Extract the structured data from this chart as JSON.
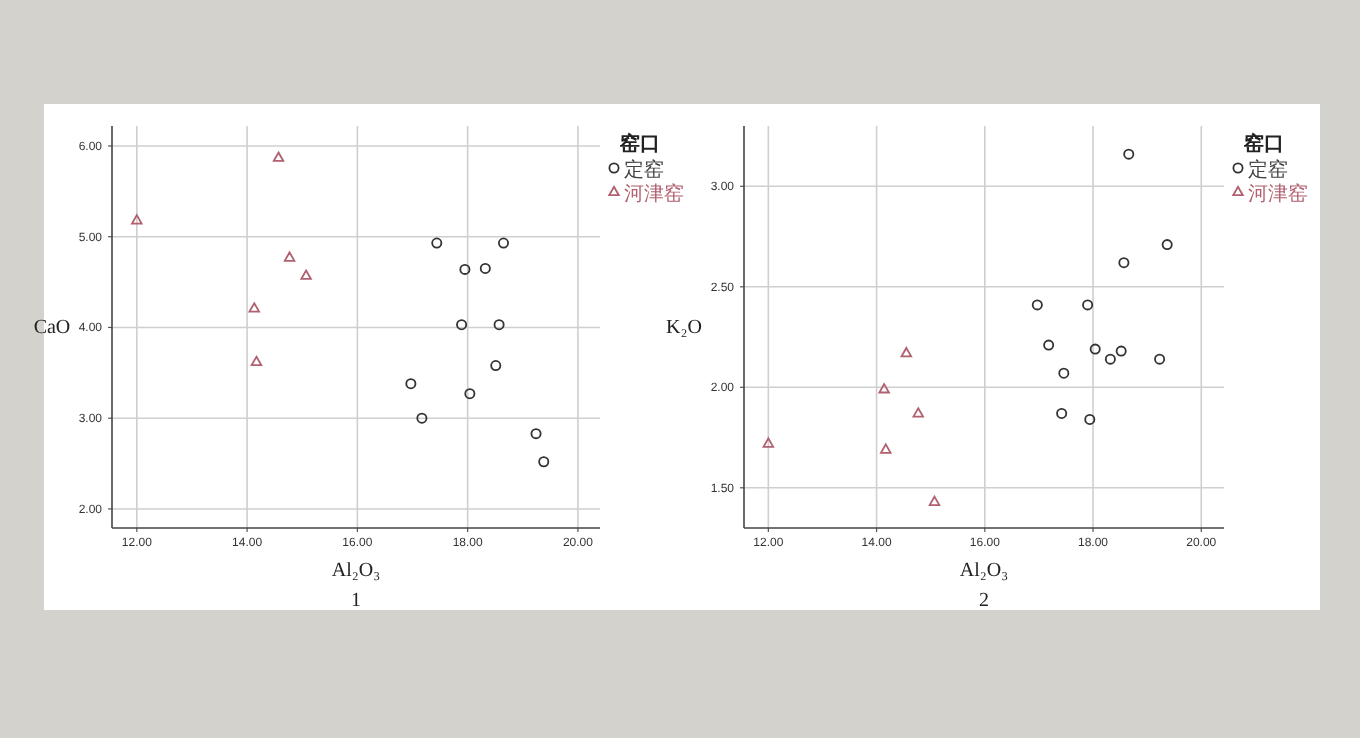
{
  "chart_data": [
    {
      "type": "scatter",
      "xlabel": "Al₂O₃",
      "ylabel": "CaO",
      "legend_title": "窑口",
      "legend": "top right",
      "grid": true,
      "annotations": [
        "1"
      ],
      "xlim": [
        11.55,
        20.4
      ],
      "xticks": [
        {
          "value": 12,
          "label": "12.00"
        },
        {
          "value": 14,
          "label": "14.00"
        },
        {
          "value": 16,
          "label": "16.00"
        },
        {
          "value": 18,
          "label": "18.00"
        },
        {
          "value": 20,
          "label": "20.00"
        }
      ],
      "ylim": [
        1.79,
        6.22
      ],
      "yticks": [
        {
          "value": 2,
          "label": "2.00"
        },
        {
          "value": 3,
          "label": "3.00"
        },
        {
          "value": 4,
          "label": "4.00"
        },
        {
          "value": 5,
          "label": "5.00"
        },
        {
          "value": 6,
          "label": "6.00"
        }
      ],
      "series": [
        {
          "name": "定窑",
          "color": "#333333",
          "marker": "circle",
          "x": [
            17.44,
            18.65,
            17.95,
            18.32,
            17.89,
            18.57,
            18.51,
            16.97,
            18.04,
            17.17,
            19.24,
            19.38
          ],
          "values": [
            4.93,
            4.93,
            4.64,
            4.65,
            4.03,
            4.03,
            3.58,
            3.38,
            3.27,
            3.0,
            2.83,
            2.52
          ]
        },
        {
          "name": "河津窑",
          "color": "#b0606e",
          "marker": "triangle",
          "x": [
            12.0,
            14.57,
            14.77,
            15.07,
            14.13,
            14.17
          ],
          "values": [
            5.18,
            5.87,
            4.77,
            4.57,
            4.21,
            3.62
          ]
        }
      ]
    },
    {
      "type": "scatter",
      "xlabel": "Al₂O₃",
      "ylabel": "K₂O",
      "legend_title": "窑口",
      "legend": "top right",
      "grid": true,
      "annotations": [
        "2"
      ],
      "xlim": [
        11.55,
        20.42
      ],
      "xticks": [
        {
          "value": 12,
          "label": "12.00"
        },
        {
          "value": 14,
          "label": "14.00"
        },
        {
          "value": 16,
          "label": "16.00"
        },
        {
          "value": 18,
          "label": "18.00"
        },
        {
          "value": 20,
          "label": "20.00"
        }
      ],
      "ylim": [
        1.3,
        3.3
      ],
      "yticks": [
        {
          "value": 1.5,
          "label": "1.50"
        },
        {
          "value": 2,
          "label": "2.00"
        },
        {
          "value": 2.5,
          "label": "2.50"
        },
        {
          "value": 3,
          "label": "3.00"
        }
      ],
      "series": [
        {
          "name": "定窑",
          "color": "#333333",
          "marker": "circle",
          "x": [
            18.66,
            19.37,
            18.57,
            16.97,
            17.9,
            17.18,
            18.04,
            18.52,
            18.32,
            19.23,
            17.46,
            17.42,
            17.94
          ],
          "values": [
            3.16,
            2.71,
            2.62,
            2.41,
            2.41,
            2.21,
            2.19,
            2.18,
            2.14,
            2.14,
            2.07,
            1.87,
            1.84
          ]
        },
        {
          "name": "河津窑",
          "color": "#b0606e",
          "marker": "triangle",
          "x": [
            12.0,
            14.55,
            14.14,
            14.77,
            14.17,
            15.07
          ],
          "values": [
            1.72,
            2.17,
            1.99,
            1.87,
            1.69,
            1.43
          ]
        }
      ]
    }
  ]
}
